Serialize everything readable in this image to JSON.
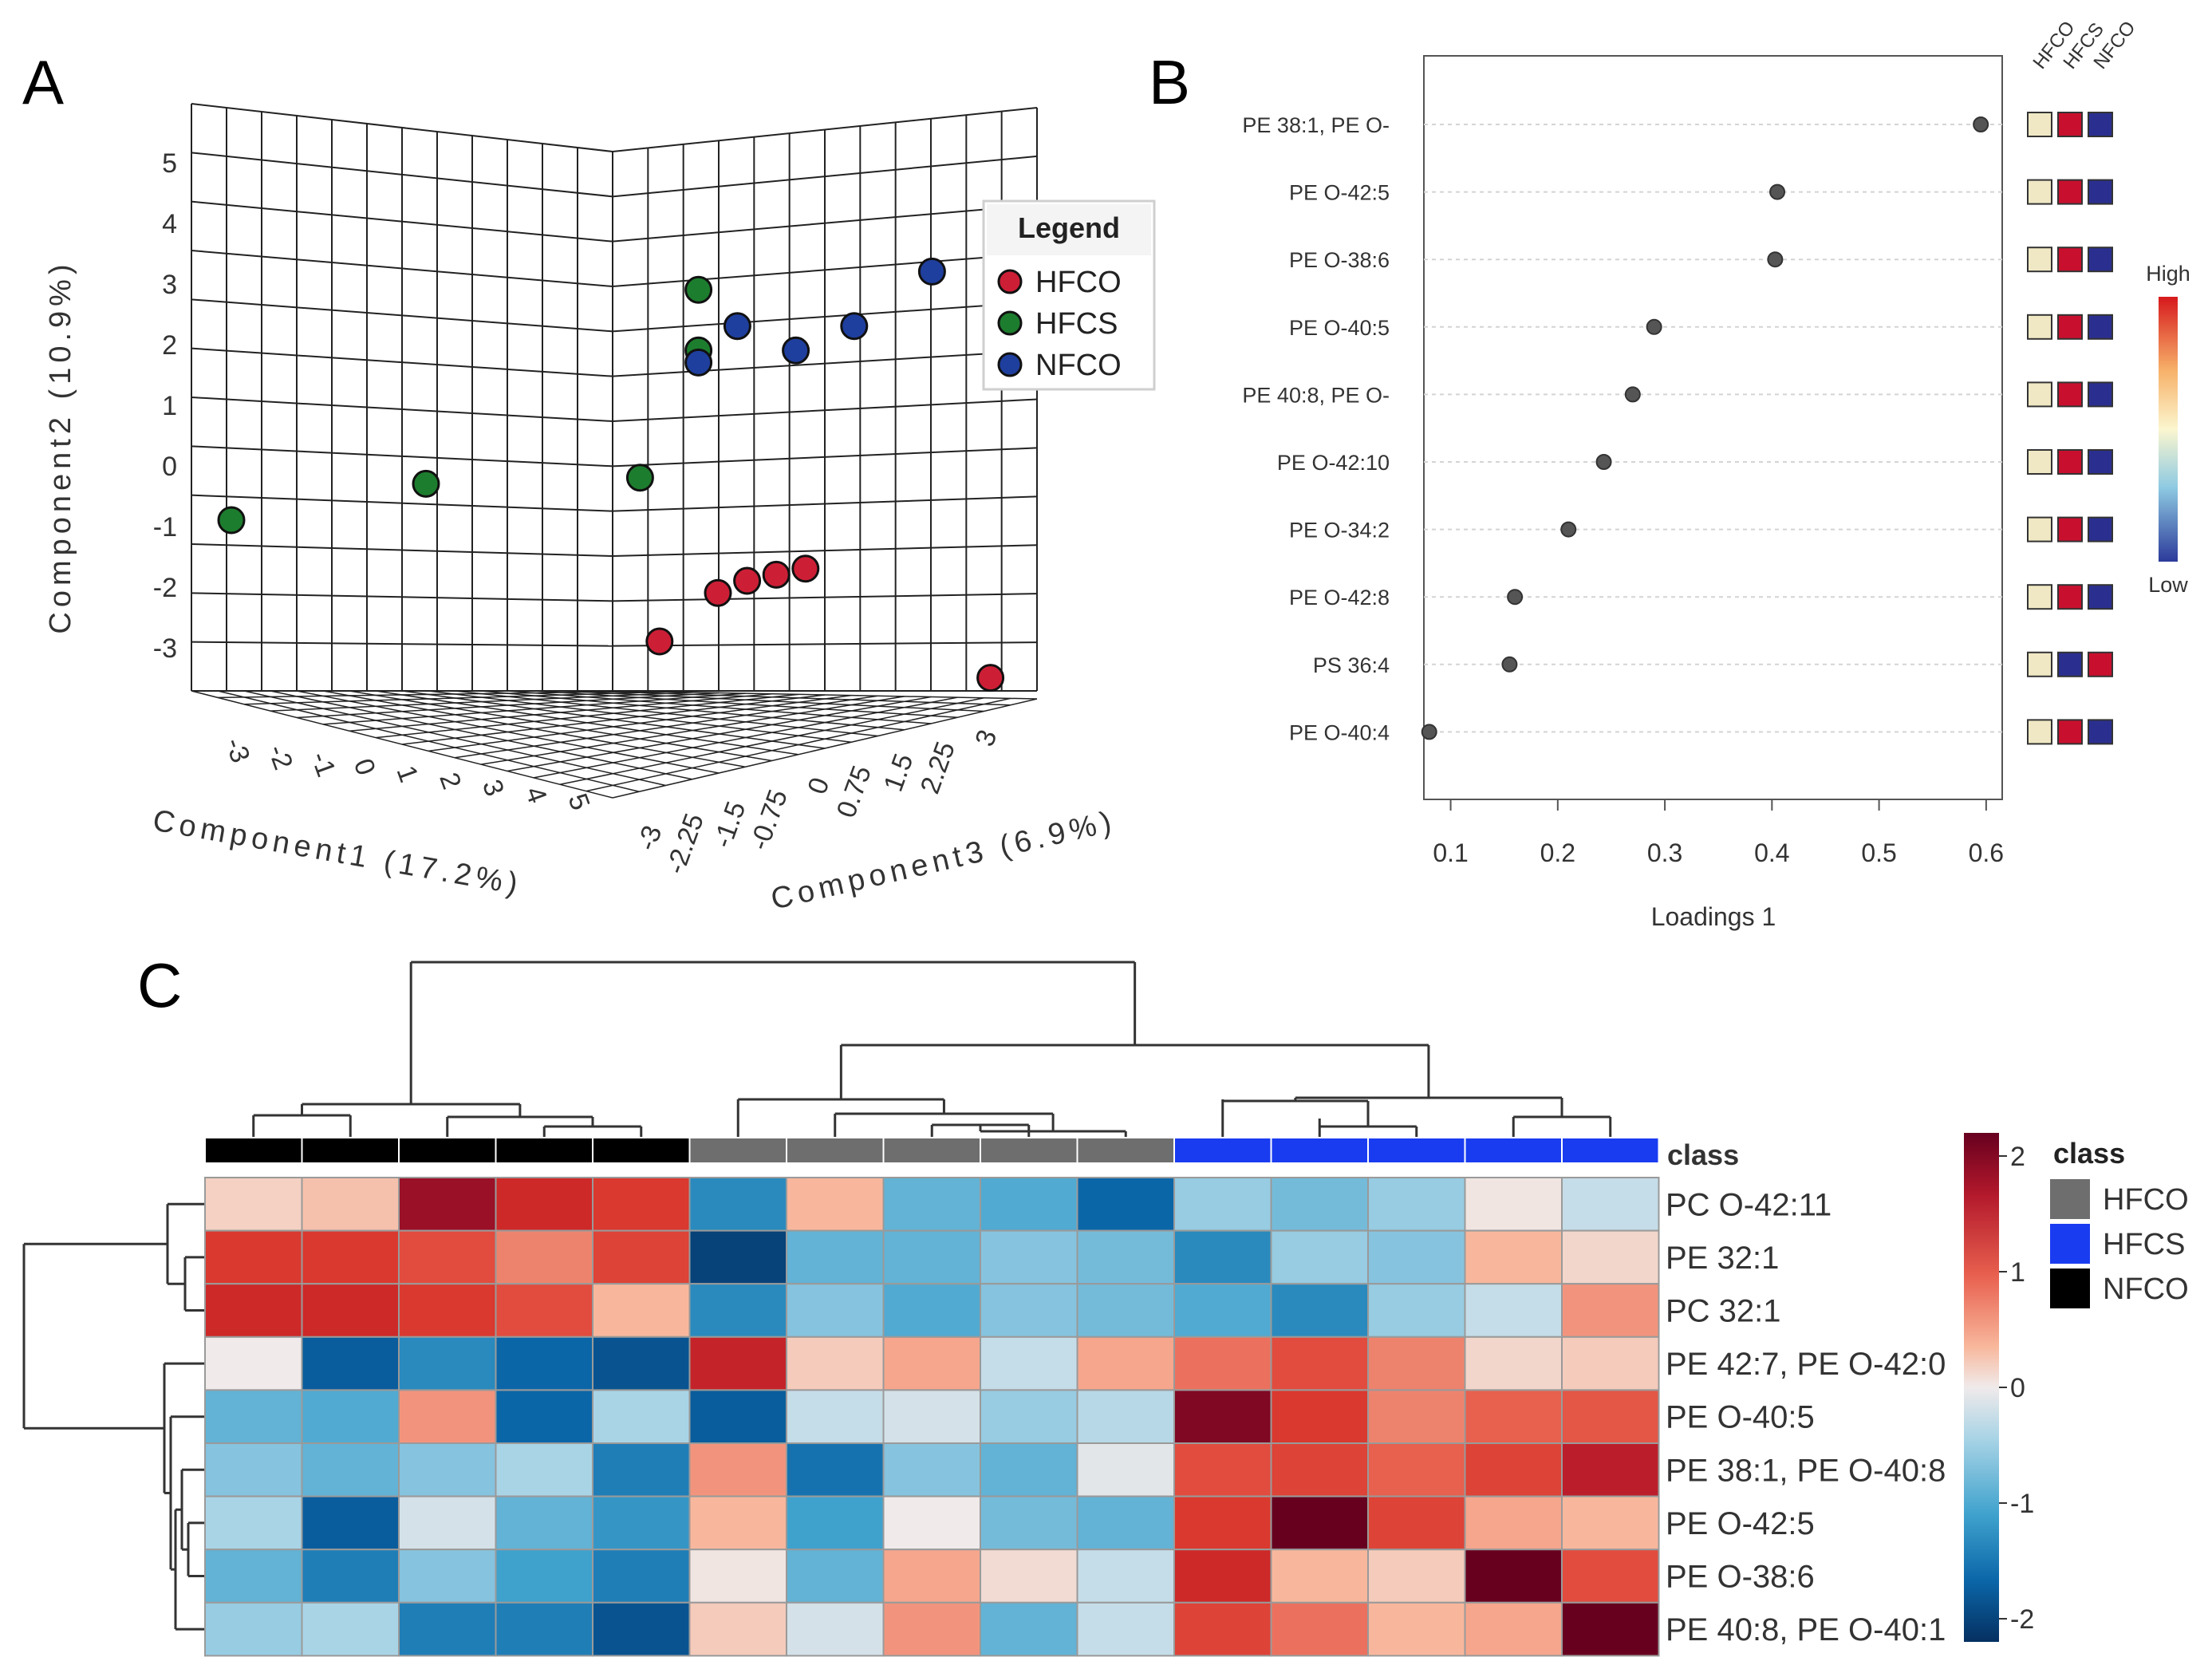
{
  "chart_data": [
    {
      "panel": "A",
      "type": "scatter",
      "title": "",
      "xlabel": "Component1 (17.2%)",
      "ylabel": "Component2 (10.9%)",
      "zlabel": "Component3 (6.9%)",
      "x_ticks": [
        "-3",
        "-2",
        "-1",
        "0",
        "1",
        "2",
        "3",
        "4",
        "5"
      ],
      "y_ticks": [
        "-3",
        "-2",
        "-1",
        "0",
        "1",
        "2",
        "3",
        "4",
        "5"
      ],
      "z_ticks": [
        "-3",
        "-2.25",
        "-1.5",
        "-0.75",
        "0",
        "0.75",
        "1.5",
        "2.25",
        "3"
      ],
      "legend": {
        "title": "Legend",
        "position": "top-right",
        "entries": [
          {
            "name": "HFCO",
            "color": "#cc1f36"
          },
          {
            "name": "HFCS",
            "color": "#1d7d2e"
          },
          {
            "name": "NFCO",
            "color": "#1f3f9e"
          }
        ]
      },
      "series": [
        {
          "name": "HFCO",
          "color": "#cc1f36",
          "points": [
            [
              1.8,
              -2.2
            ],
            [
              2.1,
              -2.0
            ],
            [
              2.4,
              -1.9
            ],
            [
              2.7,
              -1.8
            ],
            [
              1.2,
              -3.0
            ],
            [
              4.6,
              -3.6
            ]
          ]
        },
        {
          "name": "HFCS",
          "color": "#1d7d2e",
          "points": [
            [
              -3.2,
              -1.0
            ],
            [
              -1.2,
              -0.4
            ],
            [
              1.0,
              -0.3
            ],
            [
              1.6,
              1.8
            ],
            [
              1.6,
              2.8
            ]
          ]
        },
        {
          "name": "NFCO",
          "color": "#1f3f9e",
          "points": [
            [
              1.6,
              1.6
            ],
            [
              2.0,
              2.2
            ],
            [
              2.6,
              1.8
            ],
            [
              3.2,
              2.2
            ],
            [
              4.0,
              3.1
            ]
          ]
        }
      ]
    },
    {
      "panel": "B",
      "type": "scatter",
      "title": "",
      "xlabel": "Loadings 1",
      "ylabel": "",
      "xlim": [
        0.075,
        0.615
      ],
      "x_ticks": [
        0.1,
        0.2,
        0.3,
        0.4,
        0.5,
        0.6
      ],
      "features": [
        "PE 38:1, PE O-",
        "PE O-42:5",
        "PE O-38:6",
        "PE O-40:5",
        "PE 40:8, PE O-",
        "PE O-42:10",
        "PE O-34:2",
        "PE O-42:8",
        "PS 36:4",
        "PE O-40:4"
      ],
      "values": [
        0.595,
        0.405,
        0.403,
        0.29,
        0.27,
        0.243,
        0.21,
        0.16,
        0.155,
        0.08
      ],
      "group_columns": [
        "HFCO",
        "HFCS",
        "NFCO"
      ],
      "group_levels": [
        [
          "low",
          "high",
          "low"
        ],
        [
          "low",
          "high",
          "low"
        ],
        [
          "low",
          "high",
          "low"
        ],
        [
          "low",
          "high",
          "low"
        ],
        [
          "low",
          "high",
          "low"
        ],
        [
          "low",
          "high",
          "low"
        ],
        [
          "low",
          "high",
          "low"
        ],
        [
          "low",
          "high",
          "low"
        ],
        [
          "low",
          "low",
          "high"
        ],
        [
          "low",
          "high",
          "low"
        ]
      ],
      "level_colors": {
        "low": "#f0e8c4",
        "high": "#c8102e",
        "low2": "#2a2f8f"
      },
      "colorbar": {
        "high_label": "High",
        "low_label": "Low"
      }
    },
    {
      "panel": "C",
      "type": "heatmap",
      "title": "",
      "rows": [
        "PC O-42:11",
        "PE 32:1",
        "PC 32:1",
        "PE 42:7, PE O-42:0",
        "PE O-40:5",
        "PE 38:1, PE O-40:8",
        "PE O-42:5",
        "PE O-38:6",
        "PE 40:8, PE O-40:1"
      ],
      "column_classes": [
        "NFCO",
        "NFCO",
        "NFCO",
        "NFCO",
        "NFCO",
        "HFCO",
        "HFCO",
        "HFCO",
        "HFCO",
        "HFCO",
        "HFCS",
        "HFCS",
        "HFCS",
        "HFCS",
        "HFCS"
      ],
      "class_label": "class",
      "class_legend": {
        "title": "class",
        "entries": [
          {
            "name": "HFCO",
            "color": "#6e6e6e"
          },
          {
            "name": "HFCS",
            "color": "#1a3cf0"
          },
          {
            "name": "NFCO",
            "color": "#000000"
          }
        ]
      },
      "values": [
        [
          0.25,
          0.4,
          2.0,
          1.6,
          1.4,
          -1.3,
          0.5,
          -0.9,
          -1.0,
          -1.6,
          -0.6,
          -0.8,
          -0.6,
          0.05,
          -0.3
        ],
        [
          1.4,
          1.4,
          1.2,
          0.8,
          1.3,
          -2.0,
          -0.9,
          -0.9,
          -0.7,
          -0.8,
          -1.3,
          -0.6,
          -0.7,
          0.5,
          0.2
        ],
        [
          1.6,
          1.6,
          1.4,
          1.2,
          0.5,
          -1.3,
          -0.7,
          -1.0,
          -0.7,
          -0.8,
          -1.0,
          -1.3,
          -0.6,
          -0.3,
          0.7
        ],
        [
          0.0,
          -1.7,
          -1.3,
          -1.6,
          -1.8,
          1.7,
          0.3,
          0.6,
          -0.3,
          0.6,
          0.9,
          1.2,
          0.8,
          0.2,
          0.3
        ],
        [
          -0.9,
          -1.0,
          0.7,
          -1.6,
          -0.5,
          -1.7,
          -0.3,
          -0.2,
          -0.6,
          -0.4,
          2.1,
          1.4,
          0.8,
          1.0,
          1.1
        ],
        [
          -0.7,
          -0.9,
          -0.7,
          -0.5,
          -1.4,
          0.7,
          -1.5,
          -0.7,
          -0.9,
          -0.1,
          1.2,
          1.3,
          1.0,
          1.3,
          1.8
        ],
        [
          -0.5,
          -1.7,
          -0.2,
          -0.9,
          -1.2,
          0.5,
          -1.1,
          0.0,
          -0.8,
          -0.9,
          1.4,
          2.5,
          1.3,
          0.6,
          0.5
        ],
        [
          -0.9,
          -1.4,
          -0.7,
          -1.1,
          -1.4,
          0.05,
          -0.9,
          0.6,
          0.15,
          -0.3,
          1.6,
          0.5,
          0.3,
          2.5,
          1.2
        ],
        [
          -0.6,
          -0.5,
          -1.4,
          -1.4,
          -1.8,
          0.3,
          -0.2,
          0.7,
          -0.9,
          -0.3,
          1.3,
          0.9,
          0.5,
          0.6,
          2.5
        ]
      ],
      "colorbar_ticks": [
        2,
        1,
        0,
        -1,
        -2
      ],
      "colorbar_range": [
        -2.2,
        2.2
      ]
    }
  ],
  "panel_labels": [
    "A",
    "B",
    "C"
  ]
}
